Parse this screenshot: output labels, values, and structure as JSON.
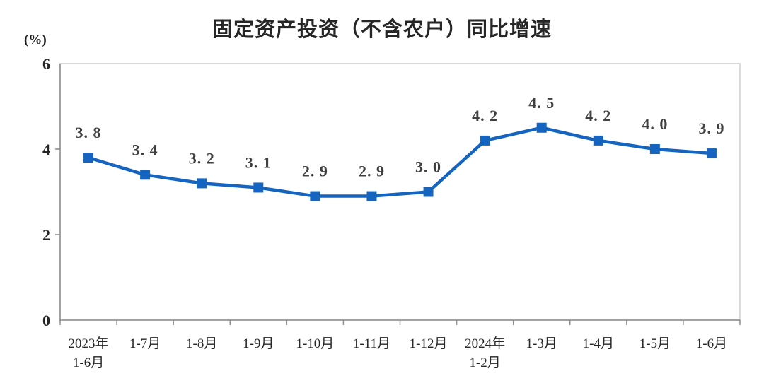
{
  "chart_data": {
    "type": "line",
    "title": "固定资产投资（不含农户）同比增速",
    "ylabel": "(%)",
    "categories": [
      [
        "2023年",
        "1-6月"
      ],
      [
        "1-7月"
      ],
      [
        "1-8月"
      ],
      [
        "1-9月"
      ],
      [
        "1-10月"
      ],
      [
        "1-11月"
      ],
      [
        "1-12月"
      ],
      [
        "2024年",
        "1-2月"
      ],
      [
        "1-3月"
      ],
      [
        "1-4月"
      ],
      [
        "1-5月"
      ],
      [
        "1-6月"
      ]
    ],
    "values": [
      3.8,
      3.4,
      3.2,
      3.1,
      2.9,
      2.9,
      3.0,
      4.2,
      4.5,
      4.2,
      4.0,
      3.9
    ],
    "point_labels": [
      "3. 8",
      "3. 4",
      "3. 2",
      "3. 1",
      "2. 9",
      "2. 9",
      "3. 0",
      "4. 2",
      "4. 5",
      "4. 2",
      "4. 0",
      "3. 9"
    ],
    "y_ticks": [
      0,
      2,
      4,
      6
    ],
    "ylim": [
      0,
      6
    ],
    "grid": false,
    "legend": "none",
    "colors": {
      "line": "#1565c0",
      "marker": "#1565c0",
      "point_label": "#404040",
      "axis": "#8c8c8c",
      "frame": "#cfcfcf",
      "tick_label": "#262626"
    },
    "marker_shape": "square"
  }
}
